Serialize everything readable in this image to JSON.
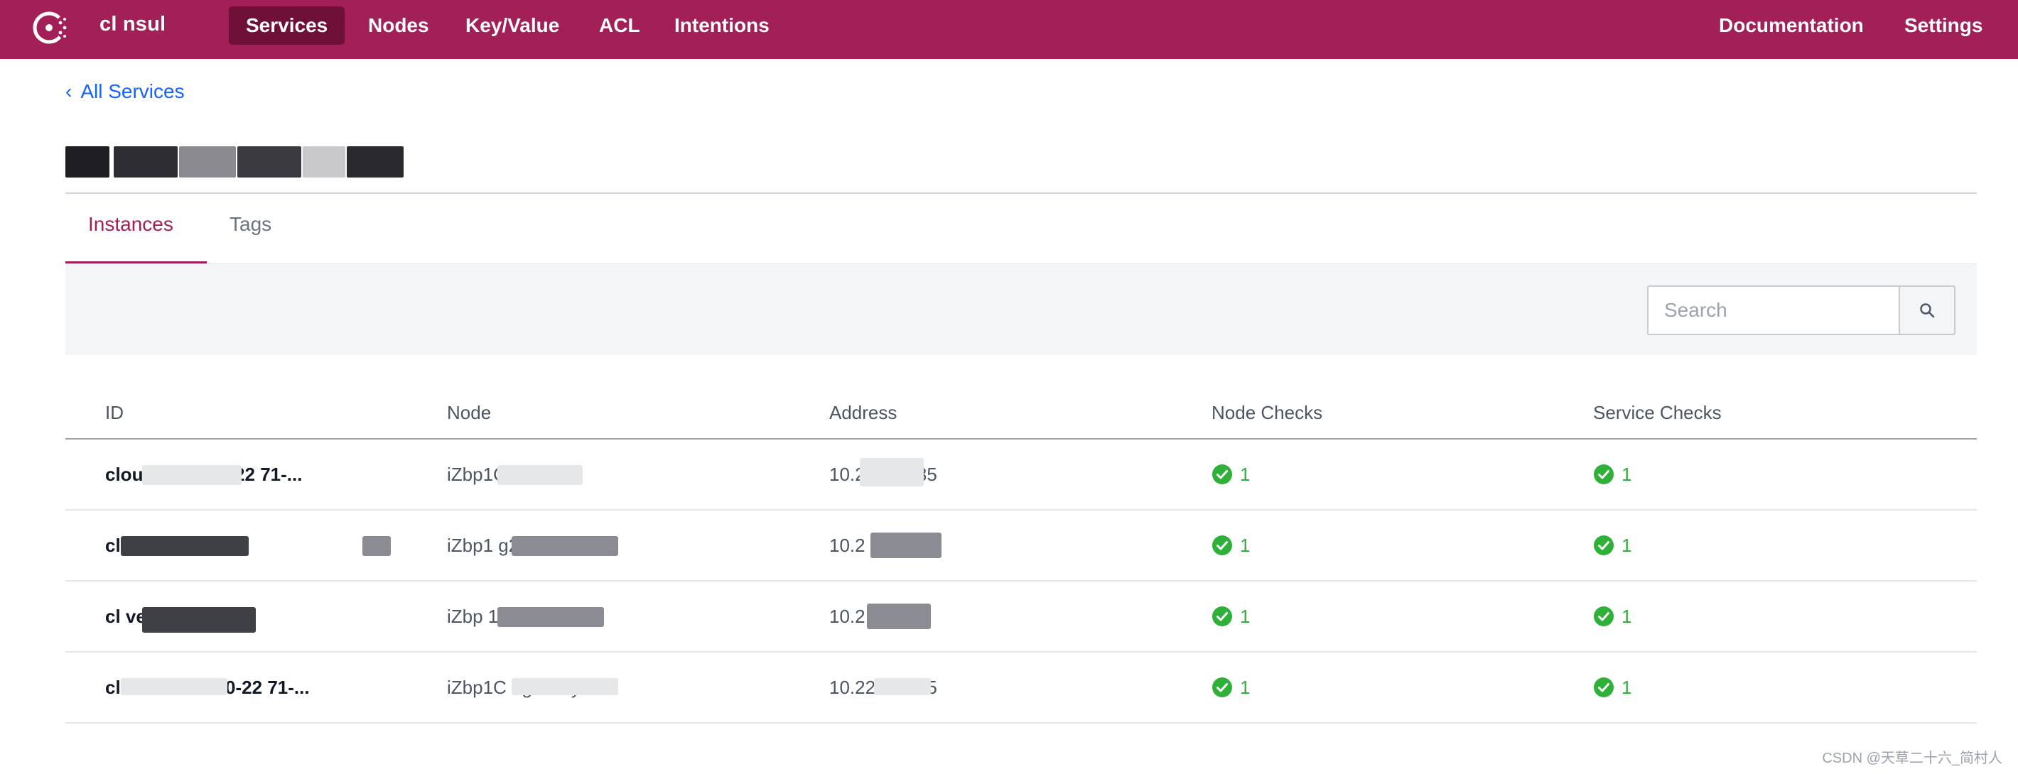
{
  "nav": {
    "datacenter": "cl  nsul",
    "items": [
      "Services",
      "Nodes",
      "Key/Value",
      "ACL",
      "Intentions"
    ],
    "right": [
      "Documentation",
      "Settings"
    ]
  },
  "breadcrumb": {
    "label": "All Services"
  },
  "service": {
    "title": "cloudwork-server"
  },
  "tabs": [
    "Instances",
    "Tags"
  ],
  "search": {
    "placeholder": "Search",
    "value": ""
  },
  "table": {
    "headers": [
      "ID",
      "Node",
      "Address",
      "Node Checks",
      "Service Checks"
    ],
    "rows": [
      {
        "id": "cloudw     ver-10-22  71-...",
        "node": "iZbp1C      1   32lsvZ",
        "address": "10.2      15:8085",
        "node_checks": "1",
        "service_checks": "1"
      },
      {
        "id": "cl        ver-10-22    7-...",
        "node": "iZbp1        g28lswZ",
        "address": "10.2        2:8085",
        "node_checks": "1",
        "service_checks": "1"
      },
      {
        "id": "cl        ver-10-22  59-...",
        "node": "iZbp       1    8lsxZ",
        "address": "10.2       2:8085",
        "node_checks": "1",
        "service_checks": "1"
      },
      {
        "id": "cloudw     rver-10-22  71-...",
        "node": "iZbp1C    9g     16lsyZ",
        "address": "10.22     8:8085",
        "node_checks": "1",
        "service_checks": "1"
      }
    ]
  },
  "watermark": "CSDN @天草二十六_简村人",
  "colors": {
    "brand": "#a21f57",
    "brand_dark": "#6e1038",
    "link": "#1563ff",
    "passing": "#2eb039"
  }
}
